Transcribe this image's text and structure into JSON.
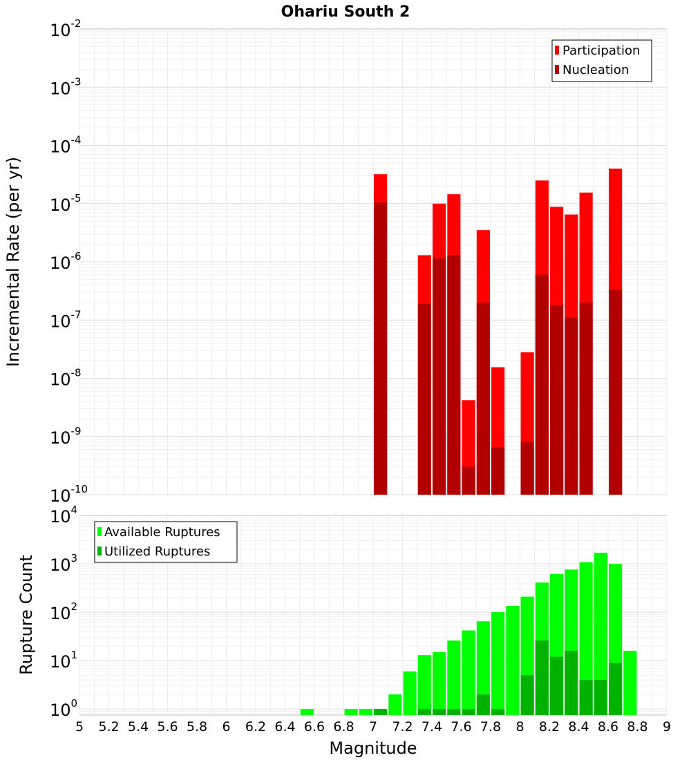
{
  "chart_data": [
    {
      "type": "bar",
      "title": "Ohariu South 2",
      "xlabel": "Magnitude",
      "ylabel": "Incremental Rate (per yr)",
      "yscale": "log",
      "xlim": [
        5,
        9
      ],
      "ylim": [
        1e-10,
        0.01
      ],
      "y_tick_exponents": [
        -10,
        -9,
        -8,
        -7,
        -6,
        -5,
        -4,
        -3,
        -2
      ],
      "legend_position": "top-right",
      "bar_width": 0.09,
      "colors": {
        "Participation": "#ff0000",
        "Nucleation": "#b20000"
      },
      "series": [
        {
          "name": "Participation",
          "x": [
            7.05,
            7.35,
            7.45,
            7.55,
            7.65,
            7.75,
            7.85,
            8.05,
            8.15,
            8.25,
            8.35,
            8.45,
            8.65
          ],
          "values": [
            3.2e-05,
            1.3e-06,
            1e-05,
            1.45e-05,
            4.2e-09,
            3.5e-06,
            1.55e-08,
            2.8e-08,
            2.5e-05,
            8.8e-06,
            6.5e-06,
            1.55e-05,
            4e-05
          ]
        },
        {
          "name": "Nucleation",
          "x": [
            7.05,
            7.35,
            7.45,
            7.55,
            7.65,
            7.75,
            7.85,
            8.05,
            8.15,
            8.25,
            8.35,
            8.45,
            8.65
          ],
          "values": [
            1.05e-05,
            1.9e-07,
            1.15e-06,
            1.3e-06,
            3e-10,
            2e-07,
            6.5e-10,
            8e-10,
            6e-07,
            1.8e-07,
            1.1e-07,
            2e-07,
            3.3e-07
          ]
        }
      ]
    },
    {
      "type": "bar",
      "title": "",
      "xlabel": "Magnitude",
      "ylabel": "Rupture Count",
      "yscale": "log",
      "xlim": [
        5,
        9
      ],
      "ylim": [
        0.75,
        10000
      ],
      "y_tick_exponents": [
        0,
        1,
        2,
        3,
        4
      ],
      "x_ticks": [
        "5",
        "5.2",
        "5.4",
        "5.6",
        "5.8",
        "6",
        "6.2",
        "6.4",
        "6.6",
        "6.8",
        "7",
        "7.2",
        "7.4",
        "7.6",
        "7.8",
        "8",
        "8.2",
        "8.4",
        "8.6",
        "8.8",
        "9"
      ],
      "legend_position": "top-left",
      "bar_width": 0.09,
      "colors": {
        "Available Ruptures": "#00ff00",
        "Utilized Ruptures": "#00b200"
      },
      "series": [
        {
          "name": "Available Ruptures",
          "x": [
            6.55,
            6.85,
            6.95,
            7.05,
            7.15,
            7.25,
            7.35,
            7.45,
            7.55,
            7.65,
            7.75,
            7.85,
            7.95,
            8.05,
            8.15,
            8.25,
            8.35,
            8.45,
            8.55,
            8.65,
            8.75
          ],
          "values": [
            1,
            1,
            1,
            1,
            2,
            6,
            13,
            15,
            26,
            42,
            65,
            100,
            135,
            210,
            410,
            620,
            760,
            1080,
            1700,
            1000,
            16
          ]
        },
        {
          "name": "Utilized Ruptures",
          "x": [
            7.05,
            7.35,
            7.45,
            7.55,
            7.65,
            7.75,
            7.85,
            8.05,
            8.15,
            8.25,
            8.35,
            8.45,
            8.55,
            8.65
          ],
          "values": [
            1,
            1,
            1,
            1,
            1,
            2,
            1,
            5,
            26,
            12,
            16,
            4,
            4,
            9
          ]
        }
      ]
    }
  ]
}
